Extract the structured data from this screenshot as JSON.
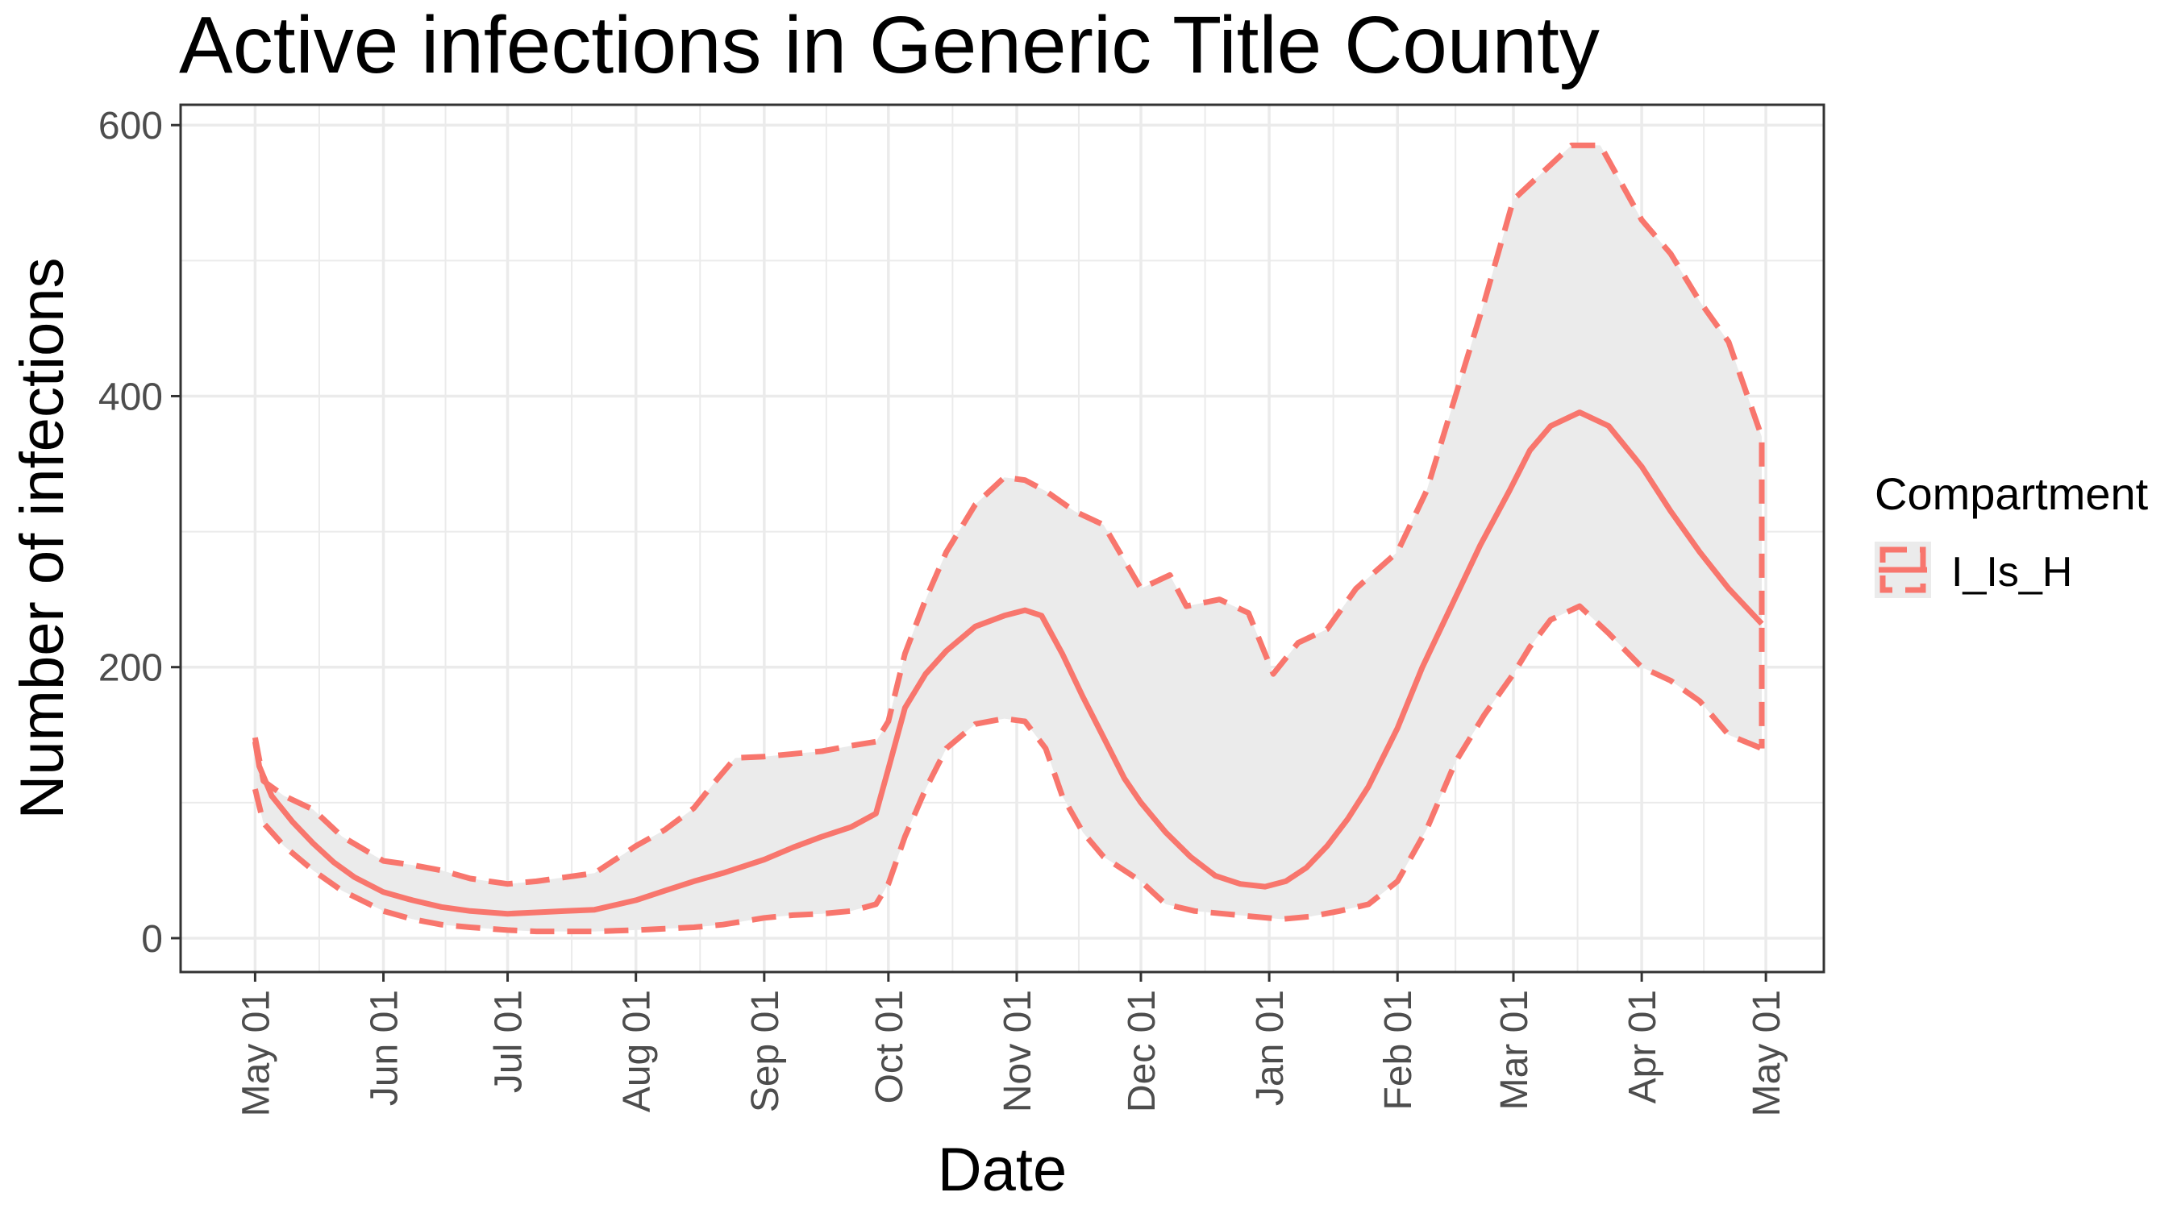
{
  "chart_data": {
    "type": "line",
    "title": "Active infections in Generic Title County",
    "xlabel": "Date",
    "ylabel": "Number of infections",
    "x_axis": {
      "type": "date",
      "range": [
        "2020-04-13",
        "2021-05-15"
      ],
      "ticks": [
        {
          "date": "2020-05-01",
          "label": "May 01"
        },
        {
          "date": "2020-06-01",
          "label": "Jun 01"
        },
        {
          "date": "2020-07-01",
          "label": "Jul 01"
        },
        {
          "date": "2020-08-01",
          "label": "Aug 01"
        },
        {
          "date": "2020-09-01",
          "label": "Sep 01"
        },
        {
          "date": "2020-10-01",
          "label": "Oct 01"
        },
        {
          "date": "2020-11-01",
          "label": "Nov 01"
        },
        {
          "date": "2020-12-01",
          "label": "Dec 01"
        },
        {
          "date": "2021-01-01",
          "label": "Jan 01"
        },
        {
          "date": "2021-02-01",
          "label": "Feb 01"
        },
        {
          "date": "2021-03-01",
          "label": "Mar 01"
        },
        {
          "date": "2021-04-01",
          "label": "Apr 01"
        },
        {
          "date": "2021-05-01",
          "label": "May 01"
        }
      ]
    },
    "y_axis": {
      "range": [
        -25,
        615
      ],
      "ticks": [
        0,
        200,
        400,
        600
      ]
    },
    "grid": true,
    "legend": {
      "title": "Compartment",
      "placement": "right",
      "entries": [
        {
          "label": "I_Is_H",
          "color": "#F8766D"
        }
      ]
    },
    "colors": {
      "series": "#F8766D",
      "ribbon": "#EBEBEB",
      "grid": "#EBEBEB",
      "panel_border": "#333333"
    },
    "series": [
      {
        "role": "median",
        "style": "solid",
        "points": [
          [
            "2020-05-01",
            145
          ],
          [
            "2020-05-02",
            127
          ],
          [
            "2020-05-05",
            105
          ],
          [
            "2020-05-10",
            86
          ],
          [
            "2020-05-15",
            70
          ],
          [
            "2020-05-20",
            56
          ],
          [
            "2020-05-25",
            45
          ],
          [
            "2020-06-01",
            34
          ],
          [
            "2020-06-08",
            28
          ],
          [
            "2020-06-15",
            23
          ],
          [
            "2020-06-22",
            20
          ],
          [
            "2020-07-01",
            18
          ],
          [
            "2020-07-08",
            19
          ],
          [
            "2020-07-15",
            20
          ],
          [
            "2020-07-22",
            21
          ],
          [
            "2020-08-01",
            28
          ],
          [
            "2020-08-08",
            35
          ],
          [
            "2020-08-15",
            42
          ],
          [
            "2020-08-22",
            48
          ],
          [
            "2020-09-01",
            58
          ],
          [
            "2020-09-08",
            67
          ],
          [
            "2020-09-15",
            75
          ],
          [
            "2020-09-22",
            82
          ],
          [
            "2020-09-28",
            92
          ],
          [
            "2020-10-01",
            125
          ],
          [
            "2020-10-05",
            170
          ],
          [
            "2020-10-10",
            195
          ],
          [
            "2020-10-15",
            212
          ],
          [
            "2020-10-22",
            230
          ],
          [
            "2020-10-29",
            238
          ],
          [
            "2020-11-03",
            242
          ],
          [
            "2020-11-07",
            238
          ],
          [
            "2020-11-12",
            210
          ],
          [
            "2020-11-17",
            178
          ],
          [
            "2020-11-22",
            148
          ],
          [
            "2020-11-27",
            118
          ],
          [
            "2020-12-01",
            100
          ],
          [
            "2020-12-07",
            78
          ],
          [
            "2020-12-13",
            60
          ],
          [
            "2020-12-19",
            46
          ],
          [
            "2020-12-25",
            40
          ],
          [
            "2020-12-31",
            38
          ],
          [
            "2021-01-05",
            42
          ],
          [
            "2021-01-10",
            52
          ],
          [
            "2021-01-15",
            68
          ],
          [
            "2021-01-20",
            88
          ],
          [
            "2021-01-25",
            112
          ],
          [
            "2021-02-01",
            155
          ],
          [
            "2021-02-07",
            200
          ],
          [
            "2021-02-14",
            245
          ],
          [
            "2021-02-21",
            290
          ],
          [
            "2021-02-28",
            330
          ],
          [
            "2021-03-05",
            360
          ],
          [
            "2021-03-10",
            378
          ],
          [
            "2021-03-17",
            388
          ],
          [
            "2021-03-24",
            378
          ],
          [
            "2021-04-01",
            348
          ],
          [
            "2021-04-08",
            315
          ],
          [
            "2021-04-15",
            285
          ],
          [
            "2021-04-22",
            258
          ],
          [
            "2021-04-30",
            232
          ]
        ]
      },
      {
        "role": "upper",
        "style": "dashed",
        "points": [
          [
            "2020-05-01",
            148
          ],
          [
            "2020-05-03",
            116
          ],
          [
            "2020-05-08",
            105
          ],
          [
            "2020-05-15",
            95
          ],
          [
            "2020-05-22",
            75
          ],
          [
            "2020-06-01",
            57
          ],
          [
            "2020-06-08",
            54
          ],
          [
            "2020-06-15",
            50
          ],
          [
            "2020-06-22",
            44
          ],
          [
            "2020-07-01",
            40
          ],
          [
            "2020-07-08",
            42
          ],
          [
            "2020-07-15",
            45
          ],
          [
            "2020-07-22",
            48
          ],
          [
            "2020-08-01",
            68
          ],
          [
            "2020-08-08",
            80
          ],
          [
            "2020-08-15",
            96
          ],
          [
            "2020-08-20",
            115
          ],
          [
            "2020-08-25",
            133
          ],
          [
            "2020-09-01",
            134
          ],
          [
            "2020-09-08",
            136
          ],
          [
            "2020-09-15",
            138
          ],
          [
            "2020-09-22",
            142
          ],
          [
            "2020-09-28",
            145
          ],
          [
            "2020-10-01",
            160
          ],
          [
            "2020-10-05",
            210
          ],
          [
            "2020-10-10",
            250
          ],
          [
            "2020-10-15",
            285
          ],
          [
            "2020-10-22",
            320
          ],
          [
            "2020-10-29",
            340
          ],
          [
            "2020-11-03",
            338
          ],
          [
            "2020-11-08",
            330
          ],
          [
            "2020-11-15",
            315
          ],
          [
            "2020-11-22",
            305
          ],
          [
            "2020-12-01",
            258
          ],
          [
            "2020-12-08",
            268
          ],
          [
            "2020-12-12",
            245
          ],
          [
            "2020-12-20",
            250
          ],
          [
            "2020-12-27",
            240
          ],
          [
            "2021-01-02",
            195
          ],
          [
            "2021-01-08",
            218
          ],
          [
            "2021-01-15",
            228
          ],
          [
            "2021-01-22",
            258
          ],
          [
            "2021-02-01",
            285
          ],
          [
            "2021-02-08",
            330
          ],
          [
            "2021-02-15",
            400
          ],
          [
            "2021-02-22",
            470
          ],
          [
            "2021-03-01",
            545
          ],
          [
            "2021-03-08",
            565
          ],
          [
            "2021-03-15",
            585
          ],
          [
            "2021-03-22",
            585
          ],
          [
            "2021-04-01",
            530
          ],
          [
            "2021-04-08",
            505
          ],
          [
            "2021-04-15",
            470
          ],
          [
            "2021-04-22",
            440
          ],
          [
            "2021-04-30",
            370
          ]
        ]
      },
      {
        "role": "lower",
        "style": "dashed",
        "points": [
          [
            "2020-05-01",
            110
          ],
          [
            "2020-05-03",
            85
          ],
          [
            "2020-05-08",
            68
          ],
          [
            "2020-05-15",
            50
          ],
          [
            "2020-05-22",
            35
          ],
          [
            "2020-06-01",
            20
          ],
          [
            "2020-06-08",
            14
          ],
          [
            "2020-06-15",
            10
          ],
          [
            "2020-06-22",
            8
          ],
          [
            "2020-07-01",
            6
          ],
          [
            "2020-07-08",
            5
          ],
          [
            "2020-07-15",
            5
          ],
          [
            "2020-07-22",
            5
          ],
          [
            "2020-08-01",
            6
          ],
          [
            "2020-08-08",
            7
          ],
          [
            "2020-08-15",
            8
          ],
          [
            "2020-08-22",
            10
          ],
          [
            "2020-09-01",
            15
          ],
          [
            "2020-09-08",
            17
          ],
          [
            "2020-09-15",
            18
          ],
          [
            "2020-09-22",
            20
          ],
          [
            "2020-09-28",
            25
          ],
          [
            "2020-10-01",
            40
          ],
          [
            "2020-10-05",
            75
          ],
          [
            "2020-10-10",
            110
          ],
          [
            "2020-10-15",
            140
          ],
          [
            "2020-10-22",
            158
          ],
          [
            "2020-10-29",
            162
          ],
          [
            "2020-11-03",
            160
          ],
          [
            "2020-11-08",
            140
          ],
          [
            "2020-11-12",
            105
          ],
          [
            "2020-11-17",
            78
          ],
          [
            "2020-11-22",
            60
          ],
          [
            "2020-12-01",
            42
          ],
          [
            "2020-12-07",
            25
          ],
          [
            "2020-12-14",
            20
          ],
          [
            "2020-12-21",
            18
          ],
          [
            "2020-12-28",
            16
          ],
          [
            "2021-01-04",
            14
          ],
          [
            "2021-01-11",
            16
          ],
          [
            "2021-01-18",
            20
          ],
          [
            "2021-01-25",
            25
          ],
          [
            "2021-02-01",
            42
          ],
          [
            "2021-02-08",
            80
          ],
          [
            "2021-02-15",
            130
          ],
          [
            "2021-02-22",
            165
          ],
          [
            "2021-03-01",
            195
          ],
          [
            "2021-03-05",
            215
          ],
          [
            "2021-03-10",
            235
          ],
          [
            "2021-03-17",
            245
          ],
          [
            "2021-03-24",
            225
          ],
          [
            "2021-04-01",
            200
          ],
          [
            "2021-04-08",
            190
          ],
          [
            "2021-04-15",
            175
          ],
          [
            "2021-04-22",
            150
          ],
          [
            "2021-04-30",
            140
          ]
        ]
      }
    ]
  }
}
